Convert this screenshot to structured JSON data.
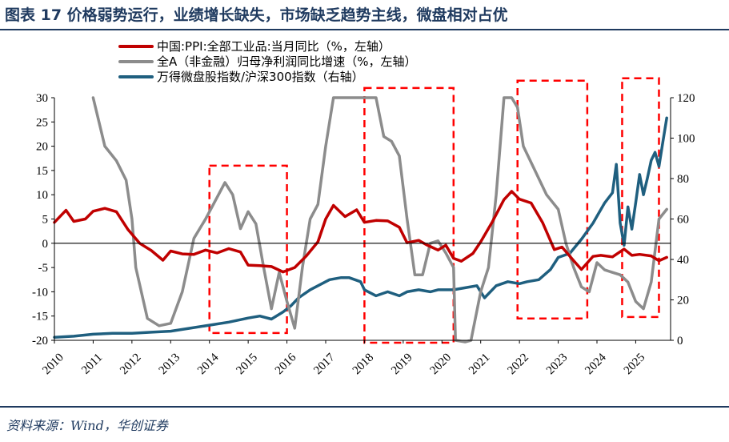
{
  "title": "图表 17   价格弱势运行，业绩增长缺失，市场缺乏趋势主线，微盘相对占优",
  "source": "资料来源：Wind，华创证券",
  "chart_data": {
    "type": "line",
    "title": "图表 17   价格弱势运行，业绩增长缺失，市场缺乏趋势主线，微盘相对占优",
    "legend": [
      {
        "name": "中国:PPI:全部工业品:当月同比（%，左轴）",
        "color": "#c00000"
      },
      {
        "name": "全A（非金融）归母净利润同比增速（%，左轴）",
        "color": "#8c8c8c"
      },
      {
        "name": "万得微盘股指数/沪深300指数（右轴）",
        "color": "#1f5f7f"
      }
    ],
    "x_ticks": [
      "2010",
      "2011",
      "2012",
      "2013",
      "2014",
      "2015",
      "2016",
      "2017",
      "2018",
      "2019",
      "2020",
      "2021",
      "2022",
      "2023",
      "2024",
      "2025"
    ],
    "y_left": {
      "ticks": [
        30,
        25,
        20,
        15,
        10,
        5,
        0,
        -5,
        -10,
        -15,
        -20
      ],
      "ylim": [
        -20,
        30
      ]
    },
    "y_right": {
      "ticks": [
        120,
        100,
        80,
        60,
        40,
        20,
        0
      ],
      "ylim": [
        0,
        120
      ]
    },
    "series": [
      {
        "name": "中国:PPI:全部工业品:当月同比（%，左轴）",
        "axis": "left",
        "color": "#c00000",
        "x": [
          2010.0,
          2010.3,
          2010.5,
          2010.8,
          2011.0,
          2011.3,
          2011.6,
          2011.9,
          2012.2,
          2012.5,
          2012.8,
          2013.0,
          2013.3,
          2013.6,
          2013.9,
          2014.2,
          2014.5,
          2014.8,
          2015.0,
          2015.3,
          2015.6,
          2015.9,
          2016.2,
          2016.5,
          2016.8,
          2017.0,
          2017.2,
          2017.5,
          2017.8,
          2018.0,
          2018.3,
          2018.6,
          2018.9,
          2019.1,
          2019.4,
          2019.6,
          2019.9,
          2020.1,
          2020.3,
          2020.5,
          2020.8,
          2021.0,
          2021.3,
          2021.6,
          2021.8,
          2022.0,
          2022.3,
          2022.6,
          2022.9,
          2023.1,
          2023.4,
          2023.6,
          2023.9,
          2024.1,
          2024.4,
          2024.7,
          2024.9,
          2025.1,
          2025.4,
          2025.6,
          2025.8
        ],
        "values": [
          4.3,
          6.8,
          4.5,
          5.0,
          6.6,
          7.2,
          6.5,
          2.8,
          0.0,
          -1.5,
          -3.5,
          -1.6,
          -2.2,
          -2.3,
          -1.4,
          -2.0,
          -1.1,
          -1.8,
          -4.5,
          -4.6,
          -4.8,
          -5.9,
          -5.0,
          -2.6,
          0.3,
          5.0,
          7.8,
          5.5,
          6.9,
          4.3,
          4.7,
          4.6,
          3.3,
          0.1,
          0.6,
          -0.3,
          -1.4,
          -0.4,
          -3.1,
          -3.7,
          -2.1,
          0.3,
          4.4,
          9.0,
          10.7,
          9.1,
          8.3,
          4.2,
          -1.3,
          -0.8,
          -3.6,
          -5.4,
          -2.7,
          -2.5,
          -2.8,
          -1.2,
          -2.5,
          -2.3,
          -2.6,
          -3.6,
          -2.9
        ]
      },
      {
        "name": "全A（非金融）归母净利润同比增速（%，左轴）",
        "axis": "left",
        "color": "#8c8c8c",
        "x": [
          2011.0,
          2011.3,
          2011.6,
          2011.85,
          2012.0,
          2012.1,
          2012.4,
          2012.7,
          2013.0,
          2013.3,
          2013.6,
          2013.9,
          2014.1,
          2014.4,
          2014.6,
          2014.8,
          2015.0,
          2015.2,
          2015.4,
          2015.6,
          2015.8,
          2016.0,
          2016.2,
          2016.4,
          2016.6,
          2016.8,
          2017.0,
          2017.2,
          2017.5,
          2017.9,
          2018.0,
          2018.3,
          2018.5,
          2018.7,
          2018.9,
          2019.1,
          2019.3,
          2019.5,
          2019.7,
          2019.9,
          2020.1,
          2020.3,
          2020.35,
          2020.6,
          2020.75,
          2021.0,
          2021.2,
          2021.4,
          2021.6,
          2021.8,
          2021.95,
          2022.1,
          2022.4,
          2022.7,
          2023.0,
          2023.2,
          2023.4,
          2023.6,
          2023.8,
          2024.0,
          2024.2,
          2024.4,
          2024.6,
          2024.8,
          2025.0,
          2025.2,
          2025.4,
          2025.6,
          2025.8
        ],
        "values": [
          30,
          20,
          17,
          13,
          5,
          -5,
          -15.5,
          -17,
          -16.5,
          -10,
          1,
          5,
          8,
          12.5,
          10,
          3,
          6.5,
          4,
          -5,
          -13.5,
          -6,
          -12,
          -17.5,
          -5,
          5,
          8,
          20,
          30,
          30,
          30,
          30,
          30,
          22,
          21,
          18,
          5,
          -6.5,
          -6.5,
          0,
          0.5,
          -2,
          -5,
          -20,
          -22,
          -20,
          -10,
          -5,
          10,
          30,
          30,
          28,
          20,
          15,
          10,
          7,
          0,
          -5,
          -9,
          -10,
          -4,
          -5.5,
          -6,
          -6.5,
          -8,
          -12,
          -13.5,
          -8,
          5,
          7
        ]
      },
      {
        "name": "万得微盘股指数/沪深300指数（右轴）",
        "axis": "right",
        "color": "#1f5f7f",
        "x": [
          2010.0,
          2010.5,
          2011.0,
          2011.5,
          2012.0,
          2012.5,
          2013.0,
          2013.5,
          2014.0,
          2014.5,
          2015.0,
          2015.3,
          2015.6,
          2015.9,
          2016.1,
          2016.3,
          2016.6,
          2016.9,
          2017.1,
          2017.4,
          2017.6,
          2017.9,
          2018.0,
          2018.3,
          2018.6,
          2018.9,
          2019.1,
          2019.4,
          2019.7,
          2019.9,
          2020.1,
          2020.3,
          2020.6,
          2020.9,
          2021.1,
          2021.4,
          2021.7,
          2022.0,
          2022.2,
          2022.5,
          2022.8,
          2023.0,
          2023.3,
          2023.6,
          2023.9,
          2024.05,
          2024.2,
          2024.4,
          2024.5,
          2024.6,
          2024.7,
          2024.8,
          2024.9,
          2025.0,
          2025.1,
          2025.2,
          2025.3,
          2025.4,
          2025.5,
          2025.6,
          2025.7,
          2025.8
        ],
        "values": [
          1.5,
          2.0,
          3.0,
          3.5,
          3.5,
          4.0,
          4.5,
          6.0,
          7.5,
          9.0,
          11.0,
          12.0,
          10.5,
          14.0,
          17.0,
          21.0,
          25.0,
          28.0,
          30.0,
          31.0,
          31.0,
          29.0,
          25.0,
          22.0,
          24.0,
          22.0,
          24.0,
          25.0,
          24.0,
          25.0,
          25.0,
          25.0,
          26.0,
          27.0,
          21.0,
          27.0,
          29.0,
          28.0,
          29.0,
          30.0,
          35.0,
          41.0,
          43.0,
          50.0,
          58.0,
          63.0,
          68.0,
          73.0,
          87.0,
          58.0,
          47.0,
          66.0,
          55.0,
          68.0,
          82.0,
          72.0,
          80.0,
          89.0,
          93.0,
          86.0,
          98.0,
          110.0
        ]
      }
    ],
    "annotations": [
      {
        "type": "dashed-box",
        "color": "#ff0000",
        "x_range": [
          2014.0,
          2016.0
        ],
        "y_range_left": [
          -18.5,
          16
        ]
      },
      {
        "type": "dashed-box",
        "color": "#ff0000",
        "x_range": [
          2018.0,
          2020.3
        ],
        "y_range_left": [
          -20.5,
          32
        ]
      },
      {
        "type": "dashed-box",
        "color": "#ff0000",
        "x_range": [
          2021.95,
          2023.75
        ],
        "y_range_left": [
          -15.5,
          33.5
        ]
      },
      {
        "type": "dashed-box",
        "color": "#ff0000",
        "x_range": [
          2024.65,
          2025.6
        ],
        "y_range_left": [
          -15.2,
          34
        ]
      }
    ],
    "grid": false,
    "legend_position": "top-left"
  }
}
